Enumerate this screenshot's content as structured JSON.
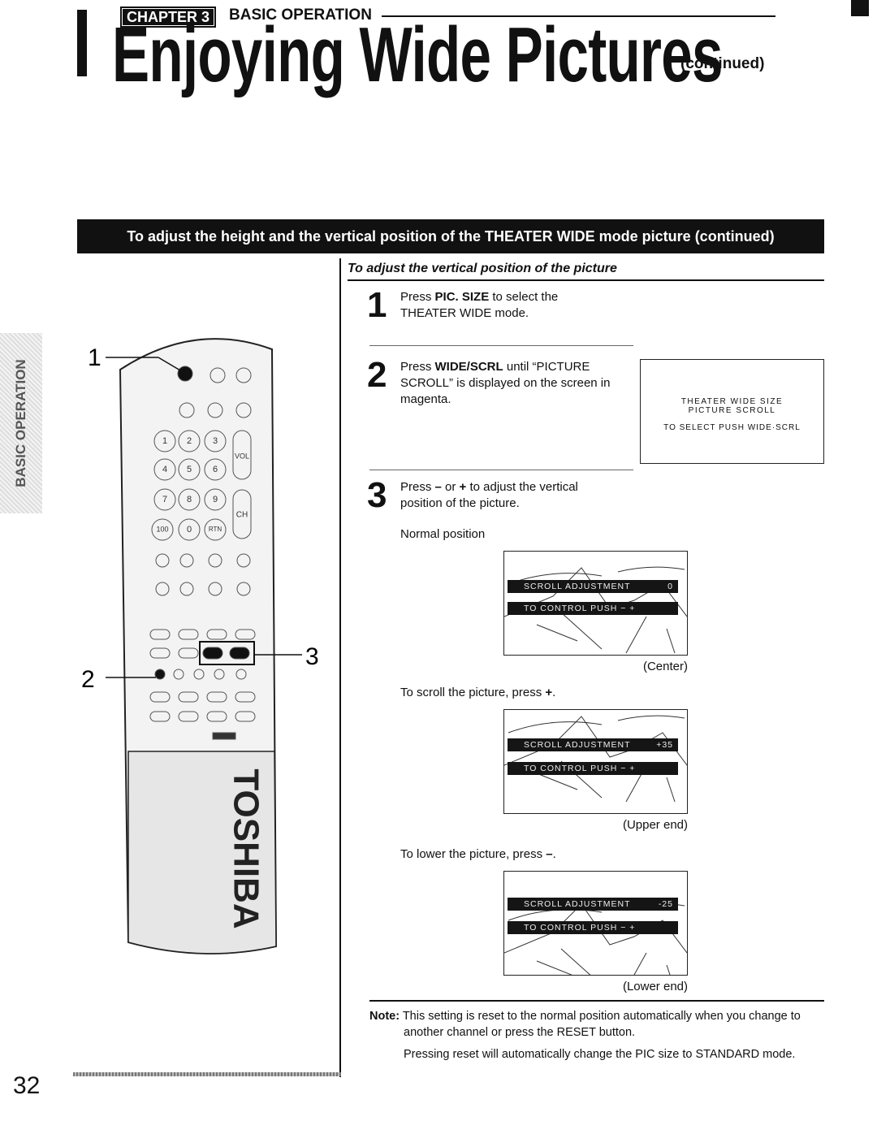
{
  "header": {
    "chapter": "CHAPTER 3",
    "section": "BASIC OPERATION",
    "title": "Enjoying Wide Pictures",
    "continued": "(continued)"
  },
  "side_tab": "BASIC OPERATION",
  "banner": "To adjust the height and the vertical position of the THEATER WIDE mode picture (continued)",
  "remote": {
    "callouts": [
      "1",
      "2",
      "3"
    ],
    "keys": [
      "1",
      "2",
      "3",
      "4",
      "5",
      "6",
      "7",
      "8",
      "9",
      "100",
      "0",
      "RTN"
    ],
    "labels": [
      "VOL",
      "CH"
    ],
    "brand": "TOSHIBA"
  },
  "section": {
    "heading": "To adjust the vertical position of the picture",
    "steps": [
      {
        "number": "1",
        "parts": [
          {
            "text": "Press "
          },
          {
            "text": "PIC. SIZE",
            "bold": true
          },
          {
            "text": " to select the THEATER WIDE mode."
          }
        ]
      },
      {
        "number": "2",
        "parts": [
          {
            "text": "Press "
          },
          {
            "text": "WIDE/SCRL",
            "bold": true
          },
          {
            "text": " until “PICTURE SCROLL” is displayed on the screen in magenta."
          }
        ]
      },
      {
        "number": "3",
        "parts": [
          {
            "text": "Press "
          },
          {
            "text": "–",
            "bold": true
          },
          {
            "text": " or "
          },
          {
            "text": "+",
            "bold": true
          },
          {
            "text": " to adjust the vertical position of the picture."
          }
        ]
      }
    ],
    "menu_screen": [
      "THEATER WIDE SIZE",
      "PICTURE SCROLL",
      "TO SELECT PUSH WIDE·SCRL"
    ],
    "positions": [
      {
        "intro": [
          {
            "text": "Normal position"
          }
        ],
        "adjust_label": "SCROLL ADJUSTMENT",
        "adjust_value": "0",
        "control": "TO CONTROL PUSH − +",
        "caption": "(Center)"
      },
      {
        "intro": [
          {
            "text": "To scroll the picture, press "
          },
          {
            "text": "+",
            "bold": true
          },
          {
            "text": "."
          }
        ],
        "adjust_label": "SCROLL ADJUSTMENT",
        "adjust_value": "+35",
        "control": "TO CONTROL PUSH − +",
        "caption": "(Upper end)"
      },
      {
        "intro": [
          {
            "text": "To lower the picture, press "
          },
          {
            "text": "–",
            "bold": true
          },
          {
            "text": "."
          }
        ],
        "adjust_label": "SCROLL ADJUSTMENT",
        "adjust_value": "-25",
        "control": "TO CONTROL PUSH − +",
        "caption": "(Lower end)"
      }
    ]
  },
  "note": {
    "parts": [
      {
        "text": "Note:",
        "bold": true
      },
      {
        "text": " This setting is reset to the normal position automatically when you change to another channel or press the RESET button."
      }
    ],
    "extra": "Pressing reset will automatically change the PIC size to STANDARD mode."
  },
  "page_number": "32"
}
